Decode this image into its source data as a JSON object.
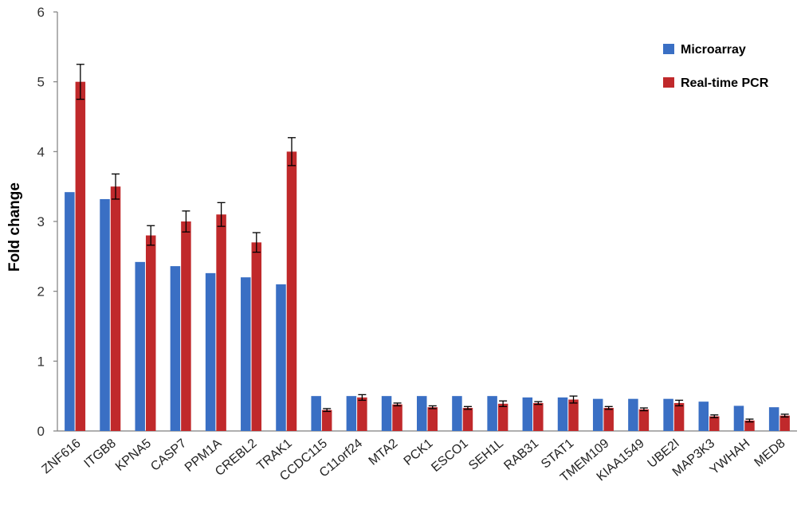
{
  "chart_data": {
    "type": "bar",
    "ylabel": "Fold change",
    "xlabel": "",
    "ylim": [
      0,
      6
    ],
    "yticks": [
      0,
      1,
      2,
      3,
      4,
      5,
      6
    ],
    "grid": false,
    "legend_position": "top-right",
    "categories": [
      "ZNF616",
      "ITGB8",
      "KPNA5",
      "CASP7",
      "PPM1A",
      "CREBL2",
      "TRAK1",
      "CCDC115",
      "C11orf24",
      "MTA2",
      "PCK1",
      "ESCO1",
      "SEH1L",
      "RAB31",
      "STAT1",
      "TMEM109",
      "KIAA1549",
      "UBE2I",
      "MAP3K3",
      "YWHAH",
      "MED8"
    ],
    "series": [
      {
        "name": "Microarray",
        "color": "#3a6fc4",
        "values": [
          3.42,
          3.32,
          2.42,
          2.36,
          2.26,
          2.2,
          2.1,
          0.5,
          0.5,
          0.5,
          0.5,
          0.5,
          0.5,
          0.48,
          0.48,
          0.46,
          0.46,
          0.46,
          0.42,
          0.36,
          0.34
        ],
        "errors": [
          null,
          null,
          null,
          null,
          null,
          null,
          null,
          null,
          null,
          null,
          null,
          null,
          null,
          null,
          null,
          null,
          null,
          null,
          null,
          null,
          null
        ]
      },
      {
        "name": "Real-time PCR",
        "color": "#c0292b",
        "values": [
          5.0,
          3.5,
          2.8,
          3.0,
          3.1,
          2.7,
          4.0,
          0.3,
          0.48,
          0.38,
          0.34,
          0.33,
          0.39,
          0.4,
          0.45,
          0.33,
          0.31,
          0.4,
          0.21,
          0.15,
          0.22
        ],
        "errors": [
          0.25,
          0.18,
          0.14,
          0.15,
          0.17,
          0.14,
          0.2,
          0.02,
          0.04,
          0.02,
          0.02,
          0.02,
          0.04,
          0.02,
          0.05,
          0.02,
          0.02,
          0.04,
          0.02,
          0.02,
          0.02
        ]
      }
    ]
  }
}
